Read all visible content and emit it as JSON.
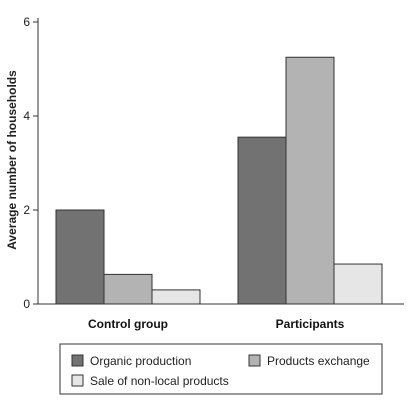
{
  "chart_data": {
    "type": "bar",
    "categories": [
      "Control group",
      "Participants"
    ],
    "series": [
      {
        "name": "Organic production",
        "values": [
          2.0,
          3.55
        ],
        "color": "#727272"
      },
      {
        "name": "Products exchange",
        "values": [
          0.63,
          5.25
        ],
        "color": "#b3b3b3"
      },
      {
        "name": "Sale of non-local products",
        "values": [
          0.3,
          0.85
        ],
        "color": "#e6e6e6"
      }
    ],
    "xlabel": "",
    "ylabel": "Average number of households",
    "ylim": [
      0,
      6
    ],
    "yticks": [
      "0",
      "2",
      "4",
      "6"
    ],
    "grid": false,
    "legend_position": "bottom"
  }
}
